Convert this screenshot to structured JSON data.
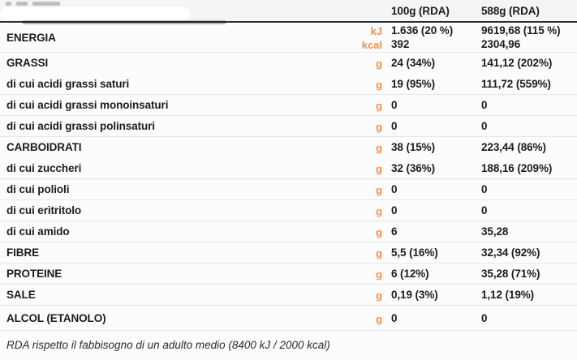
{
  "colors": {
    "accent_orange": "#f29150",
    "header_divider": "#26323e",
    "row_divider": "#e6e6e7",
    "text_dark": "#1c1c1c",
    "background": "#fcfcfc"
  },
  "header": {
    "col_100g": "100g (RDA)",
    "col_588g": "588g (RDA)"
  },
  "table": {
    "rows": [
      {
        "label": "ENERGIA",
        "type": "main",
        "lines": [
          {
            "unit": "kJ",
            "col1": "1.636 (20 %)",
            "col2": "9619,68 (115 %)"
          },
          {
            "unit": "kcal",
            "col1": "392",
            "col2": "2304,96"
          }
        ]
      },
      {
        "label": "GRASSI",
        "type": "main",
        "unit": "g",
        "col1": "24 (34%)",
        "col2": "141,12 (202%)"
      },
      {
        "label": "di cui acidi grassi saturi",
        "type": "sub",
        "unit": "g",
        "col1": "19 (95%)",
        "col2": "111,72 (559%)"
      },
      {
        "label": "di cui acidi grassi monoinsaturi",
        "type": "sub",
        "unit": "g",
        "col1": "0",
        "col2": "0"
      },
      {
        "label": "di cui acidi grassi polinsaturi",
        "type": "sub",
        "unit": "g",
        "col1": "0",
        "col2": "0"
      },
      {
        "label": "CARBOIDRATI",
        "type": "main",
        "unit": "g",
        "col1": "38 (15%)",
        "col2": "223,44 (86%)"
      },
      {
        "label": "di cui zuccheri",
        "type": "sub",
        "unit": "g",
        "col1": "32 (36%)",
        "col2": "188,16 (209%)"
      },
      {
        "label": "di cui polioli",
        "type": "sub",
        "unit": "g",
        "col1": "0",
        "col2": "0"
      },
      {
        "label": "di cui eritritolo",
        "type": "sub",
        "unit": "g",
        "col1": "0",
        "col2": "0"
      },
      {
        "label": "di cui amido",
        "type": "sub",
        "unit": "g",
        "col1": "6",
        "col2": "35,28"
      },
      {
        "label": "FIBRE",
        "type": "main",
        "unit": "g",
        "col1": "5,5 (16%)",
        "col2": "32,34 (92%)"
      },
      {
        "label": "PROTEINE",
        "type": "main",
        "unit": "g",
        "col1": "6 (12%)",
        "col2": "35,28 (71%)"
      },
      {
        "label": "SALE",
        "type": "main",
        "unit": "g",
        "col1": "0,19 (3%)",
        "col2": "1,12 (19%)"
      },
      {
        "label": "ALCOL (ETANOLO)",
        "type": "main",
        "unit": "g",
        "col1": "0",
        "col2": "0"
      }
    ]
  },
  "footer": {
    "rda_note": "RDA rispetto il fabbisogno di un adulto medio (8400 kJ / 2000 kcal)"
  }
}
